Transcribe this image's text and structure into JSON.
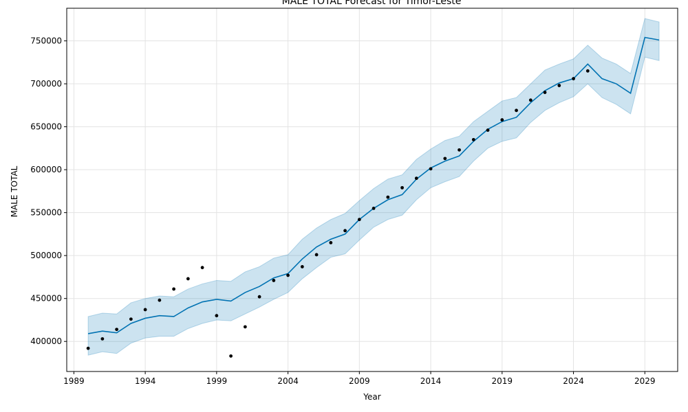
{
  "chart_data": {
    "type": "line",
    "title": "MALE TOTAL Forecast for Timor-Leste",
    "xlabel": "Year",
    "ylabel": "MALE TOTAL",
    "xlim": [
      1988.5,
      2031.3
    ],
    "ylim": [
      365000,
      788000
    ],
    "xticks": [
      1989,
      1994,
      1999,
      2004,
      2009,
      2014,
      2019,
      2024,
      2029
    ],
    "yticks": [
      400000,
      450000,
      500000,
      550000,
      600000,
      650000,
      700000,
      750000
    ],
    "grid": true,
    "colors": {
      "forecast": "#0072B2",
      "interval": "#0072B2",
      "observed": "#000000"
    },
    "observed": {
      "x": [
        1990,
        1991,
        1992,
        1993,
        1994,
        1995,
        1996,
        1997,
        1998,
        1999,
        2000,
        2001,
        2002,
        2003,
        2004,
        2005,
        2006,
        2007,
        2008,
        2009,
        2010,
        2011,
        2012,
        2013,
        2014,
        2015,
        2016,
        2017,
        2018,
        2019,
        2020,
        2021,
        2022,
        2023,
        2024,
        2025
      ],
      "y": [
        392000,
        403000,
        414000,
        426000,
        437000,
        448000,
        461000,
        473000,
        486000,
        430000,
        383000,
        417000,
        452000,
        471000,
        477000,
        487000,
        501000,
        515000,
        529000,
        542000,
        555000,
        568000,
        579000,
        590000,
        601000,
        613000,
        623000,
        635000,
        646000,
        658000,
        669000,
        681000,
        690000,
        698000,
        706000,
        715000
      ]
    },
    "forecast": {
      "x": [
        1990,
        1991,
        1992,
        1993,
        1994,
        1995,
        1996,
        1997,
        1998,
        1999,
        2000,
        2001,
        2002,
        2003,
        2004,
        2005,
        2006,
        2007,
        2008,
        2009,
        2010,
        2011,
        2012,
        2013,
        2014,
        2015,
        2016,
        2017,
        2018,
        2019,
        2020,
        2021,
        2022,
        2023,
        2024,
        2025,
        2026,
        2027,
        2028,
        2029,
        2030
      ],
      "yhat": [
        409000,
        412000,
        410000,
        421000,
        427000,
        430000,
        429000,
        439000,
        446000,
        449000,
        447000,
        457000,
        464000,
        474000,
        479000,
        496000,
        510000,
        519000,
        525000,
        542000,
        555000,
        565000,
        571000,
        589000,
        602000,
        610000,
        616000,
        633000,
        647000,
        656000,
        661000,
        678000,
        692000,
        701000,
        706000,
        723000,
        706000,
        700000,
        689000,
        754000,
        751000
      ],
      "lower": [
        384000,
        388000,
        386000,
        398000,
        404000,
        406000,
        406000,
        415000,
        421000,
        425000,
        424000,
        432000,
        440000,
        449000,
        457000,
        473000,
        486000,
        498000,
        502000,
        518000,
        533000,
        542000,
        547000,
        565000,
        579000,
        586000,
        592000,
        610000,
        625000,
        633000,
        637000,
        655000,
        669000,
        678000,
        685000,
        700000,
        684000,
        676000,
        665000,
        731000,
        727000
      ],
      "upper": [
        429000,
        433000,
        432000,
        445000,
        450000,
        453000,
        452000,
        461000,
        467000,
        471000,
        470000,
        481000,
        487000,
        497000,
        501000,
        519000,
        532000,
        542000,
        549000,
        564000,
        578000,
        589000,
        594000,
        612000,
        624000,
        634000,
        639000,
        656000,
        668000,
        680000,
        684000,
        700000,
        716000,
        723000,
        729000,
        745000,
        730000,
        723000,
        712000,
        776000,
        772000
      ]
    }
  }
}
